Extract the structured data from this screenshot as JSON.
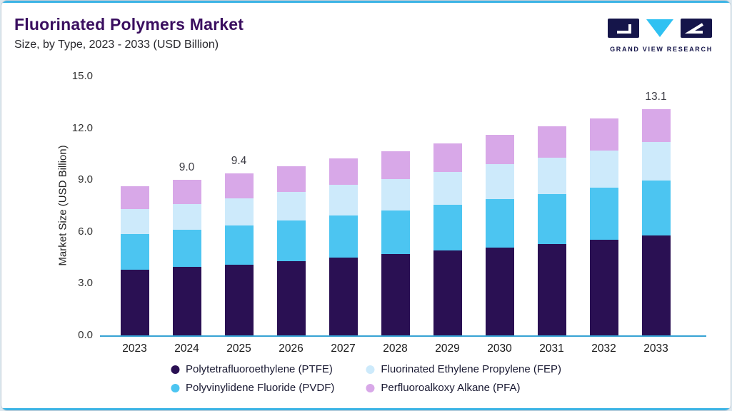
{
  "header": {
    "title": "Fluorinated Polymers Market",
    "subtitle": "Size, by Type, 2023 - 2033 (USD Billion)",
    "logo_text": "GRAND VIEW RESEARCH"
  },
  "colors": {
    "accent_line": "#3cb4e5",
    "axis_line": "#37a3d4",
    "title_text": "#3a0e5f",
    "logo_navy": "#15154a",
    "logo_cyan": "#2fc1f2"
  },
  "chart_data": {
    "type": "bar",
    "stacked": true,
    "title": "Fluorinated Polymers Market Size, by Type, 2023 - 2033 (USD Billion)",
    "xlabel": "",
    "ylabel": "Market Size (USD Billion)",
    "ylim": [
      0,
      15
    ],
    "yticks": [
      "0.0",
      "3.0",
      "6.0",
      "9.0",
      "12.0",
      "15.0"
    ],
    "grid": false,
    "legend_position": "bottom",
    "categories": [
      "2023",
      "2024",
      "2025",
      "2026",
      "2027",
      "2028",
      "2029",
      "2030",
      "2031",
      "2032",
      "2033"
    ],
    "series": [
      {
        "name": "Polytetrafluoroethylene (PTFE)",
        "color": "#2a1053",
        "values": [
          3.8,
          3.95,
          4.1,
          4.3,
          4.5,
          4.7,
          4.9,
          5.1,
          5.3,
          5.55,
          5.8
        ]
      },
      {
        "name": "Polyvinylidene Fluoride (PVDF)",
        "color": "#4cc5f1",
        "values": [
          2.05,
          2.15,
          2.25,
          2.35,
          2.45,
          2.55,
          2.65,
          2.8,
          2.9,
          3.0,
          3.15
        ]
      },
      {
        "name": "Fluorinated Ethylene Propylene (FEP)",
        "color": "#cdeafb",
        "values": [
          1.45,
          1.5,
          1.6,
          1.65,
          1.75,
          1.8,
          1.9,
          2.0,
          2.1,
          2.15,
          2.25
        ]
      },
      {
        "name": "Perfluoroalkoxy Alkane (PFA)",
        "color": "#d8a8e8",
        "values": [
          1.35,
          1.4,
          1.45,
          1.5,
          1.55,
          1.6,
          1.65,
          1.7,
          1.8,
          1.85,
          1.9
        ]
      }
    ],
    "totals": [
      8.65,
      9.0,
      9.4,
      9.8,
      10.25,
      10.65,
      11.1,
      11.6,
      12.1,
      12.55,
      13.1
    ],
    "totals_labeled": {
      "2024": "9.0",
      "2025": "9.4",
      "2033": "13.1"
    },
    "legend_order": [
      "Polytetrafluoroethylene (PTFE)",
      "Fluorinated Ethylene Propylene (FEP)",
      "Polyvinylidene Fluoride (PVDF)",
      "Perfluoroalkoxy Alkane (PFA)"
    ]
  }
}
